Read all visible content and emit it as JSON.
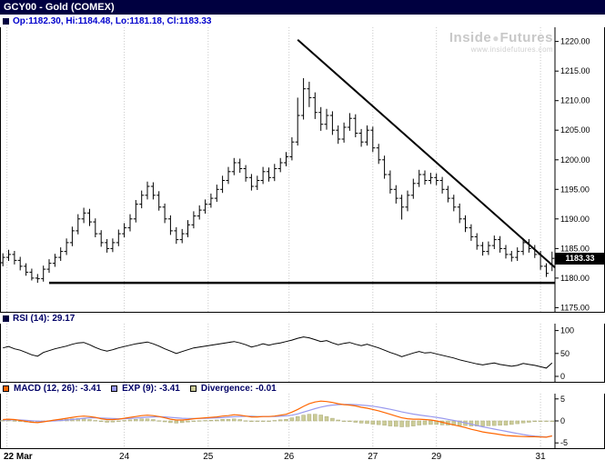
{
  "window": {
    "title": "GCY00 - Gold (COMEX)"
  },
  "quote_bar": {
    "ohlc_text": "Op:1182.30, Hi:1184.48, Lo:1181.18, Cl:1183.33"
  },
  "watermark": {
    "brand_left": "Inside",
    "dot": "●",
    "brand_right": "Futures",
    "url": "www.insidefutures.com"
  },
  "price_axis_label": "1183.33",
  "indicator_headers": {
    "rsi": "RSI (14): 29.17",
    "macd": "MACD (12, 26): -3.41",
    "exp": "EXP (9): -3.41",
    "divergence": "Divergence: -0.01"
  },
  "colors": {
    "titlebar_bg": "#000040",
    "quote_text": "#0000cc",
    "header_text": "#000066",
    "bar_color": "#000000",
    "trendline": "#000000",
    "support_line": "#000000",
    "rsi_line": "#000000",
    "macd_line": "#ff6600",
    "exp_line": "#9999ee",
    "divergence_fill": "#cccc99",
    "divergence_edge": "#aaaa77",
    "grid": "#c9c9c9",
    "axis_text": "#000000",
    "price_tag_bg": "#000000",
    "price_tag_text": "#ffffff",
    "watermark": "#c8c8c8"
  },
  "chart_data": {
    "type": "ohlc",
    "title": "GCY00 - Gold (COMEX)",
    "x_axis": {
      "labels": [
        {
          "text": "22 Mar",
          "bar": 1.2,
          "align": "left",
          "bold": true,
          "grid": true
        },
        {
          "text": "24",
          "bar": 21.5,
          "grid": true
        },
        {
          "text": "25",
          "bar": 36,
          "grid": true
        },
        {
          "text": "26",
          "bar": 50,
          "grid": true
        },
        {
          "text": "27",
          "bar": 64.5,
          "grid": true
        },
        {
          "text": "29",
          "bar": 75.5,
          "grid": true
        },
        {
          "text": "31",
          "bar": 93.5,
          "grid": true
        }
      ]
    },
    "price_panel": {
      "type": "ohlc",
      "y_range": [
        1174.3,
        1222.4
      ],
      "y_ticks": [
        {
          "v": 1220,
          "label": "1220.00"
        },
        {
          "v": 1215,
          "label": "1215.00"
        },
        {
          "v": 1210,
          "label": "1210.00"
        },
        {
          "v": 1205,
          "label": "1205.00"
        },
        {
          "v": 1200,
          "label": "1200.00"
        },
        {
          "v": 1195,
          "label": "1195.00"
        },
        {
          "v": 1190,
          "label": "1190.00"
        },
        {
          "v": 1185,
          "label": "1185.00"
        },
        {
          "v": 1180,
          "label": "1180.00"
        },
        {
          "v": 1175,
          "label": "1175.00"
        }
      ],
      "last_price": 1183.33,
      "trendline": {
        "from_bar": 51.5,
        "from_price": 1220.3,
        "to_bar": 96,
        "to_price": 1181.8
      },
      "support_line": {
        "price": 1179.2,
        "from_bar": 8.5,
        "to_bar": 96
      },
      "ohlc_bars": [
        [
          1182.6,
          1184.2,
          1182.0,
          1183.5
        ],
        [
          1183.5,
          1184.8,
          1182.9,
          1184.0
        ],
        [
          1184.0,
          1184.6,
          1182.3,
          1183.0
        ],
        [
          1183.0,
          1183.6,
          1181.3,
          1182.0
        ],
        [
          1182.0,
          1182.5,
          1180.4,
          1181.0
        ],
        [
          1181.0,
          1181.6,
          1179.6,
          1180.0
        ],
        [
          1180.0,
          1180.7,
          1179.2,
          1179.9
        ],
        [
          1179.9,
          1182.1,
          1179.4,
          1181.5
        ],
        [
          1181.5,
          1183.2,
          1180.9,
          1182.5
        ],
        [
          1182.5,
          1184.1,
          1181.9,
          1183.5
        ],
        [
          1183.5,
          1185.2,
          1182.9,
          1184.5
        ],
        [
          1184.5,
          1186.7,
          1183.9,
          1186.0
        ],
        [
          1186.0,
          1188.7,
          1185.4,
          1188.0
        ],
        [
          1188.0,
          1190.8,
          1187.4,
          1190.0
        ],
        [
          1190.0,
          1191.9,
          1189.3,
          1191.0
        ],
        [
          1191.0,
          1191.7,
          1188.8,
          1189.5
        ],
        [
          1189.5,
          1190.1,
          1186.9,
          1187.5
        ],
        [
          1187.5,
          1188.1,
          1185.3,
          1186.0
        ],
        [
          1186.0,
          1186.6,
          1184.3,
          1185.0
        ],
        [
          1185.0,
          1186.7,
          1184.4,
          1186.0
        ],
        [
          1186.0,
          1188.2,
          1185.4,
          1187.5
        ],
        [
          1187.5,
          1189.3,
          1186.9,
          1188.5
        ],
        [
          1188.5,
          1190.8,
          1187.9,
          1190.0
        ],
        [
          1190.0,
          1193.2,
          1189.4,
          1192.5
        ],
        [
          1192.5,
          1194.8,
          1191.8,
          1194.0
        ],
        [
          1194.0,
          1196.3,
          1193.3,
          1195.5
        ],
        [
          1195.5,
          1196.2,
          1193.3,
          1194.0
        ],
        [
          1194.0,
          1194.7,
          1191.4,
          1192.0
        ],
        [
          1192.0,
          1192.6,
          1189.3,
          1190.0
        ],
        [
          1190.0,
          1190.6,
          1187.3,
          1188.0
        ],
        [
          1188.0,
          1188.6,
          1185.8,
          1186.5
        ],
        [
          1186.5,
          1188.3,
          1185.9,
          1187.5
        ],
        [
          1187.5,
          1189.8,
          1186.9,
          1189.0
        ],
        [
          1189.0,
          1191.3,
          1188.4,
          1190.5
        ],
        [
          1190.5,
          1192.3,
          1189.9,
          1191.5
        ],
        [
          1191.5,
          1193.3,
          1190.9,
          1192.5
        ],
        [
          1192.5,
          1194.3,
          1191.9,
          1193.5
        ],
        [
          1193.5,
          1195.8,
          1192.9,
          1195.0
        ],
        [
          1195.0,
          1197.3,
          1194.4,
          1196.5
        ],
        [
          1196.5,
          1198.8,
          1195.9,
          1198.0
        ],
        [
          1198.0,
          1200.3,
          1197.4,
          1199.5
        ],
        [
          1199.5,
          1200.2,
          1197.8,
          1198.5
        ],
        [
          1198.5,
          1199.1,
          1196.3,
          1197.0
        ],
        [
          1197.0,
          1197.6,
          1194.8,
          1195.5
        ],
        [
          1195.5,
          1197.3,
          1194.9,
          1196.5
        ],
        [
          1196.5,
          1198.8,
          1195.9,
          1198.0
        ],
        [
          1198.0,
          1198.7,
          1196.3,
          1197.0
        ],
        [
          1197.0,
          1199.3,
          1196.4,
          1198.5
        ],
        [
          1198.5,
          1200.3,
          1197.9,
          1199.5
        ],
        [
          1199.5,
          1201.3,
          1198.9,
          1200.5
        ],
        [
          1200.5,
          1203.8,
          1199.9,
          1203.0
        ],
        [
          1203.0,
          1210.5,
          1202.4,
          1207.5
        ],
        [
          1207.5,
          1213.8,
          1206.8,
          1212.0
        ],
        [
          1212.0,
          1213.2,
          1208.9,
          1210.5
        ],
        [
          1210.5,
          1211.4,
          1206.9,
          1208.0
        ],
        [
          1208.0,
          1208.9,
          1204.9,
          1206.0
        ],
        [
          1206.0,
          1208.6,
          1205.1,
          1207.5
        ],
        [
          1207.5,
          1208.2,
          1204.2,
          1205.0
        ],
        [
          1205.0,
          1205.8,
          1202.7,
          1203.5
        ],
        [
          1203.5,
          1206.3,
          1202.9,
          1205.5
        ],
        [
          1205.5,
          1207.9,
          1204.9,
          1207.0
        ],
        [
          1207.0,
          1207.7,
          1203.8,
          1204.5
        ],
        [
          1204.5,
          1205.2,
          1202.2,
          1203.0
        ],
        [
          1203.0,
          1205.8,
          1202.4,
          1205.0
        ],
        [
          1205.0,
          1205.6,
          1201.3,
          1202.0
        ],
        [
          1202.0,
          1202.7,
          1199.3,
          1200.0
        ],
        [
          1200.0,
          1200.7,
          1196.8,
          1197.5
        ],
        [
          1197.5,
          1198.2,
          1194.3,
          1195.0
        ],
        [
          1195.0,
          1195.7,
          1192.6,
          1193.5
        ],
        [
          1193.5,
          1194.1,
          1189.9,
          1192.0
        ],
        [
          1192.0,
          1194.8,
          1191.3,
          1194.0
        ],
        [
          1194.0,
          1196.8,
          1193.4,
          1196.0
        ],
        [
          1196.0,
          1198.3,
          1195.4,
          1197.5
        ],
        [
          1197.5,
          1198.2,
          1195.8,
          1196.5
        ],
        [
          1196.5,
          1197.8,
          1195.9,
          1197.0
        ],
        [
          1197.0,
          1197.7,
          1195.7,
          1196.5
        ],
        [
          1196.5,
          1197.1,
          1194.3,
          1195.0
        ],
        [
          1195.0,
          1195.6,
          1192.8,
          1193.5
        ],
        [
          1193.5,
          1194.1,
          1191.3,
          1192.0
        ],
        [
          1192.0,
          1192.6,
          1189.3,
          1190.0
        ],
        [
          1190.0,
          1190.6,
          1187.8,
          1188.5
        ],
        [
          1188.5,
          1189.1,
          1186.3,
          1187.0
        ],
        [
          1187.0,
          1187.6,
          1184.8,
          1185.5
        ],
        [
          1185.5,
          1186.1,
          1183.8,
          1184.5
        ],
        [
          1184.5,
          1186.2,
          1183.9,
          1185.5
        ],
        [
          1185.5,
          1187.2,
          1184.9,
          1186.5
        ],
        [
          1186.5,
          1187.1,
          1184.3,
          1185.0
        ],
        [
          1185.0,
          1185.6,
          1183.3,
          1184.0
        ],
        [
          1184.0,
          1184.6,
          1182.8,
          1183.5
        ],
        [
          1183.5,
          1185.2,
          1182.9,
          1184.5
        ],
        [
          1184.5,
          1186.7,
          1183.9,
          1186.0
        ],
        [
          1186.0,
          1186.6,
          1184.3,
          1185.0
        ],
        [
          1185.0,
          1185.6,
          1183.4,
          1184.0
        ],
        [
          1184.0,
          1184.6,
          1181.4,
          1182.0
        ],
        [
          1182.0,
          1182.5,
          1180.2,
          1180.8
        ],
        [
          1182.3,
          1184.48,
          1181.18,
          1183.33
        ]
      ]
    },
    "rsi_panel": {
      "type": "line",
      "current": 29.17,
      "y_range": [
        -12,
        115
      ],
      "y_ticks": [
        {
          "v": 100,
          "label": "100"
        },
        {
          "v": 50,
          "label": "50"
        },
        {
          "v": 0,
          "label": "0"
        }
      ],
      "values": [
        62,
        65,
        60,
        57,
        52,
        47,
        44,
        52,
        56,
        60,
        63,
        66,
        70,
        73,
        74,
        69,
        63,
        58,
        55,
        58,
        62,
        65,
        68,
        71,
        73,
        75,
        71,
        66,
        60,
        55,
        50,
        54,
        58,
        62,
        64,
        66,
        68,
        70,
        72,
        74,
        76,
        73,
        69,
        64,
        67,
        71,
        68,
        71,
        73,
        76,
        79,
        83,
        86,
        84,
        80,
        76,
        78,
        73,
        69,
        72,
        74,
        70,
        67,
        70,
        66,
        62,
        57,
        52,
        48,
        43,
        47,
        51,
        54,
        51,
        52,
        49,
        46,
        43,
        40,
        36,
        33,
        30,
        27,
        25,
        27,
        29,
        26,
        24,
        22,
        24,
        28,
        26,
        24,
        21,
        18,
        29.17
      ]
    },
    "macd_panel": {
      "type": "line+histogram",
      "macd_current": -3.41,
      "exp_current": -3.41,
      "divergence_current": -0.01,
      "y_range": [
        -6.2,
        6.2
      ],
      "y_ticks": [
        {
          "v": 5,
          "label": "5"
        },
        {
          "v": 0,
          "label": "0"
        },
        {
          "v": -5,
          "label": "-5"
        }
      ],
      "macd": [
        0.3,
        0.4,
        0.3,
        0.1,
        -0.1,
        -0.3,
        -0.4,
        -0.2,
        0.0,
        0.2,
        0.4,
        0.6,
        0.8,
        1.0,
        1.1,
        1.0,
        0.8,
        0.5,
        0.3,
        0.3,
        0.4,
        0.6,
        0.8,
        1.0,
        1.2,
        1.3,
        1.2,
        1.0,
        0.7,
        0.4,
        0.2,
        0.2,
        0.3,
        0.5,
        0.6,
        0.7,
        0.8,
        0.9,
        1.1,
        1.2,
        1.4,
        1.3,
        1.1,
        0.9,
        0.9,
        1.0,
        1.0,
        1.1,
        1.3,
        1.5,
        2.0,
        2.6,
        3.3,
        3.9,
        4.3,
        4.5,
        4.4,
        4.2,
        3.9,
        3.7,
        3.6,
        3.4,
        3.1,
        2.9,
        2.6,
        2.3,
        1.9,
        1.5,
        1.1,
        0.7,
        0.5,
        0.4,
        0.4,
        0.3,
        0.2,
        0.0,
        -0.3,
        -0.6,
        -0.9,
        -1.2,
        -1.5,
        -1.9,
        -2.2,
        -2.5,
        -2.7,
        -2.9,
        -3.1,
        -3.3,
        -3.4,
        -3.5,
        -3.55,
        -3.6,
        -3.6,
        -3.65,
        -3.7,
        -3.41
      ],
      "exp": [
        0.2,
        0.25,
        0.25,
        0.2,
        0.15,
        0.05,
        -0.05,
        -0.1,
        -0.05,
        0.0,
        0.1,
        0.2,
        0.3,
        0.45,
        0.6,
        0.7,
        0.7,
        0.65,
        0.6,
        0.55,
        0.5,
        0.5,
        0.55,
        0.65,
        0.75,
        0.85,
        0.9,
        0.95,
        0.9,
        0.8,
        0.7,
        0.6,
        0.55,
        0.55,
        0.55,
        0.6,
        0.65,
        0.7,
        0.75,
        0.85,
        0.95,
        1.0,
        1.05,
        1.05,
        1.0,
        1.0,
        1.0,
        1.0,
        1.05,
        1.15,
        1.3,
        1.6,
        2.0,
        2.4,
        2.8,
        3.15,
        3.4,
        3.6,
        3.7,
        3.75,
        3.75,
        3.7,
        3.6,
        3.5,
        3.35,
        3.15,
        2.9,
        2.65,
        2.35,
        2.05,
        1.8,
        1.55,
        1.35,
        1.15,
        1.0,
        0.8,
        0.6,
        0.35,
        0.1,
        -0.15,
        -0.45,
        -0.75,
        -1.05,
        -1.35,
        -1.6,
        -1.85,
        -2.1,
        -2.35,
        -2.6,
        -2.85,
        -3.1,
        -3.3,
        -3.45,
        -3.55,
        -3.65,
        -3.4
      ]
    }
  }
}
